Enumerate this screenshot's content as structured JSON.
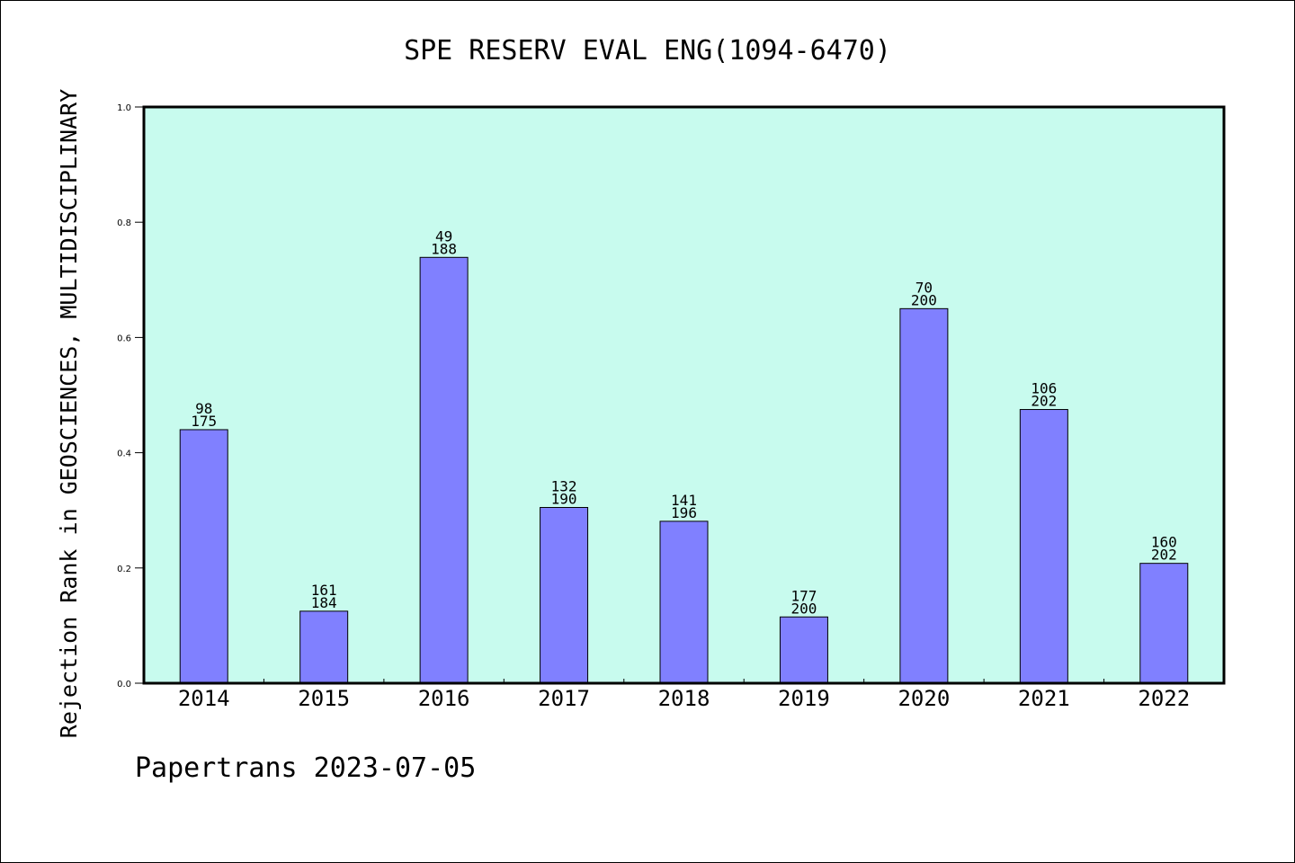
{
  "chart_data": {
    "type": "bar",
    "title": "SPE RESERV EVAL ENG(1094-6470)",
    "ylabel": "Rejection Rank in GEOSCIENCES, MULTIDISCIPLINARY",
    "xlabel": "",
    "categories": [
      "2014",
      "2015",
      "2016",
      "2017",
      "2018",
      "2019",
      "2020",
      "2021",
      "2022"
    ],
    "values": [
      0.44,
      0.125,
      0.739,
      0.305,
      0.281,
      0.115,
      0.65,
      0.475,
      0.208
    ],
    "rank_labels": [
      "98",
      "161",
      "49",
      "132",
      "141",
      "177",
      "70",
      "106",
      "160"
    ],
    "total_labels": [
      "175",
      "184",
      "188",
      "190",
      "196",
      "200",
      "200",
      "202",
      "202"
    ],
    "ylim": [
      0,
      1.0
    ],
    "yticks": [
      "0.0",
      "0.2",
      "0.4",
      "0.6",
      "0.8",
      "1.0"
    ],
    "grid": false,
    "legend": "none",
    "colors": {
      "plot_background": "#c8fbee",
      "bar_fill": "#8080ff",
      "bar_stroke": "#000000"
    }
  },
  "footer": {
    "credit": "Papertrans 2023-07-05"
  }
}
